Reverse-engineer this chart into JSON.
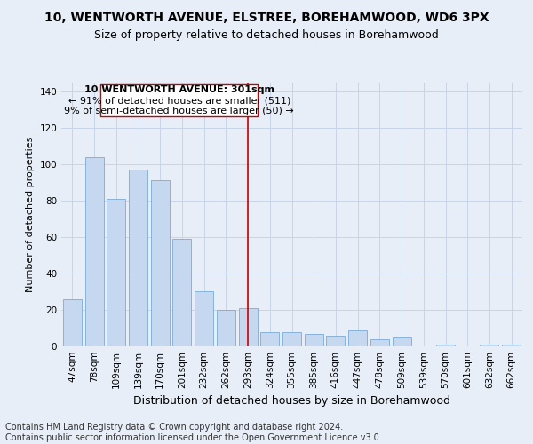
{
  "title": "10, WENTWORTH AVENUE, ELSTREE, BOREHAMWOOD, WD6 3PX",
  "subtitle": "Size of property relative to detached houses in Borehamwood",
  "xlabel": "Distribution of detached houses by size in Borehamwood",
  "ylabel": "Number of detached properties",
  "categories": [
    "47sqm",
    "78sqm",
    "109sqm",
    "139sqm",
    "170sqm",
    "201sqm",
    "232sqm",
    "262sqm",
    "293sqm",
    "324sqm",
    "355sqm",
    "385sqm",
    "416sqm",
    "447sqm",
    "478sqm",
    "509sqm",
    "539sqm",
    "570sqm",
    "601sqm",
    "632sqm",
    "662sqm"
  ],
  "values": [
    26,
    104,
    81,
    97,
    91,
    59,
    30,
    20,
    21,
    8,
    8,
    7,
    6,
    9,
    4,
    5,
    0,
    1,
    0,
    1,
    1
  ],
  "bar_color": "#c5d8f0",
  "bar_edgecolor": "#7aaad4",
  "annotation_line1": "10 WENTWORTH AVENUE: 301sqm",
  "annotation_line2": "← 91% of detached houses are smaller (511)",
  "annotation_line3": "9% of semi-detached houses are larger (50) →",
  "annotation_box_facecolor": "#ffffff",
  "annotation_border_color": "#cc0000",
  "vline_color": "#cc0000",
  "grid_color": "#c8d4e8",
  "background_color": "#e8eef8",
  "footer_text": "Contains HM Land Registry data © Crown copyright and database right 2024.\nContains public sector information licensed under the Open Government Licence v3.0.",
  "title_fontsize": 10,
  "subtitle_fontsize": 9,
  "xlabel_fontsize": 9,
  "ylabel_fontsize": 8,
  "tick_fontsize": 7.5,
  "annotation_fontsize": 8,
  "footer_fontsize": 7,
  "ylim": [
    0,
    145
  ],
  "yticks": [
    0,
    20,
    40,
    60,
    80,
    100,
    120,
    140
  ],
  "vline_index": 8
}
